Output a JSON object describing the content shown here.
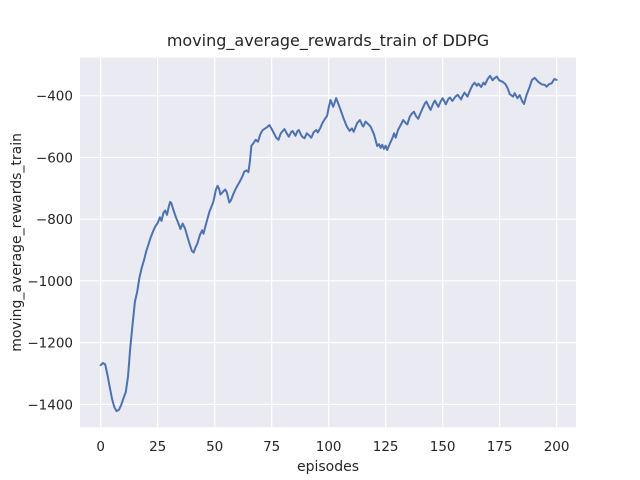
{
  "figure": {
    "title": "moving_average_rewards_train of DDPG",
    "xlabel": "episodes",
    "ylabel": "moving_average_rewards_train"
  },
  "chart_data": {
    "type": "line",
    "title": "moving_average_rewards_train of DDPG",
    "xlabel": "episodes",
    "ylabel": "moving_average_rewards_train",
    "style": "seaborn-darkgrid",
    "grid": true,
    "legend": "none",
    "background_color": "#eaeaf2",
    "gridline_color": "#ffffff",
    "line_color": "#4c72b0",
    "text_color": "#262626",
    "x_ticks": [
      0,
      25,
      50,
      75,
      100,
      125,
      150,
      175,
      200
    ],
    "y_ticks": [
      -400,
      -600,
      -800,
      -1000,
      -1200,
      -1400
    ],
    "xlim": [
      -9.07,
      208.5
    ],
    "ylim": [
      -1474,
      -276.6
    ],
    "series": [
      {
        "name": "moving_average_rewards_train",
        "points": [
          [
            0,
            -1273
          ],
          [
            1,
            -1266
          ],
          [
            2,
            -1271
          ],
          [
            3,
            -1305
          ],
          [
            4,
            -1345
          ],
          [
            5,
            -1383
          ],
          [
            6,
            -1410
          ],
          [
            7,
            -1422
          ],
          [
            8,
            -1418
          ],
          [
            9,
            -1402
          ],
          [
            10,
            -1380
          ],
          [
            11,
            -1360
          ],
          [
            12,
            -1310
          ],
          [
            13,
            -1215
          ],
          [
            14,
            -1140
          ],
          [
            15,
            -1068
          ],
          [
            16,
            -1035
          ],
          [
            17,
            -990
          ],
          [
            18,
            -958
          ],
          [
            19,
            -933
          ],
          [
            20,
            -903
          ],
          [
            21,
            -880
          ],
          [
            22,
            -858
          ],
          [
            23,
            -839
          ],
          [
            24,
            -823
          ],
          [
            25,
            -812
          ],
          [
            26,
            -794
          ],
          [
            26.7,
            -806
          ],
          [
            27.5,
            -780
          ],
          [
            28.3,
            -772
          ],
          [
            29.1,
            -786
          ],
          [
            30,
            -755
          ],
          [
            30.5,
            -744
          ],
          [
            31,
            -748
          ],
          [
            32,
            -772
          ],
          [
            33,
            -794
          ],
          [
            34,
            -812
          ],
          [
            35,
            -832
          ],
          [
            36,
            -814
          ],
          [
            37,
            -830
          ],
          [
            38,
            -856
          ],
          [
            39,
            -880
          ],
          [
            40,
            -903
          ],
          [
            40.8,
            -908
          ],
          [
            41.5,
            -893
          ],
          [
            42.5,
            -877
          ],
          [
            43.5,
            -852
          ],
          [
            44.5,
            -836
          ],
          [
            45.1,
            -847
          ],
          [
            46,
            -822
          ],
          [
            47,
            -795
          ],
          [
            47.7,
            -776
          ],
          [
            48.5,
            -762
          ],
          [
            49.5,
            -742
          ],
          [
            50.5,
            -706
          ],
          [
            51.3,
            -692
          ],
          [
            52,
            -703
          ],
          [
            52.5,
            -720
          ],
          [
            53.2,
            -715
          ],
          [
            54,
            -708
          ],
          [
            54.6,
            -704
          ],
          [
            55.3,
            -712
          ],
          [
            56.4,
            -746
          ],
          [
            57.2,
            -738
          ],
          [
            58,
            -722
          ],
          [
            59,
            -705
          ],
          [
            60,
            -691
          ],
          [
            61,
            -679
          ],
          [
            62,
            -664
          ],
          [
            63,
            -646
          ],
          [
            64,
            -642
          ],
          [
            64.8,
            -648
          ],
          [
            65.5,
            -610
          ],
          [
            66.1,
            -562
          ],
          [
            67,
            -554
          ],
          [
            68,
            -543
          ],
          [
            69,
            -549
          ],
          [
            70,
            -525
          ],
          [
            71,
            -512
          ],
          [
            72,
            -507
          ],
          [
            73,
            -502
          ],
          [
            74,
            -495
          ],
          [
            75,
            -508
          ],
          [
            76,
            -522
          ],
          [
            77,
            -536
          ],
          [
            78,
            -543
          ],
          [
            79,
            -522
          ],
          [
            80,
            -513
          ],
          [
            80.6,
            -508
          ],
          [
            81.6,
            -522
          ],
          [
            82.5,
            -533
          ],
          [
            83.5,
            -519
          ],
          [
            84.2,
            -514
          ],
          [
            85.4,
            -530
          ],
          [
            86.4,
            -514
          ],
          [
            86.9,
            -511
          ],
          [
            87.9,
            -527
          ],
          [
            88.4,
            -533
          ],
          [
            89.4,
            -538
          ],
          [
            90.4,
            -522
          ],
          [
            91.6,
            -530
          ],
          [
            92.4,
            -536
          ],
          [
            93.4,
            -519
          ],
          [
            94.6,
            -511
          ],
          [
            95.3,
            -519
          ],
          [
            96.4,
            -504
          ],
          [
            97.2,
            -489
          ],
          [
            98.3,
            -476
          ],
          [
            99.3,
            -465
          ],
          [
            100,
            -440
          ],
          [
            100.8,
            -414
          ],
          [
            102,
            -436
          ],
          [
            103.3,
            -408
          ],
          [
            104.2,
            -425
          ],
          [
            105,
            -441
          ],
          [
            106.5,
            -473
          ],
          [
            108,
            -500
          ],
          [
            109.2,
            -514
          ],
          [
            110.2,
            -506
          ],
          [
            111,
            -517
          ],
          [
            112.5,
            -489
          ],
          [
            113.7,
            -479
          ],
          [
            114.7,
            -495
          ],
          [
            115.2,
            -500
          ],
          [
            116.2,
            -484
          ],
          [
            117.2,
            -491
          ],
          [
            118.4,
            -500
          ],
          [
            119.9,
            -525
          ],
          [
            121.3,
            -563
          ],
          [
            122.1,
            -557
          ],
          [
            122.8,
            -569
          ],
          [
            123.5,
            -559
          ],
          [
            124.3,
            -572
          ],
          [
            125,
            -562
          ],
          [
            125.7,
            -576
          ],
          [
            126.9,
            -554
          ],
          [
            127.9,
            -538
          ],
          [
            128.7,
            -522
          ],
          [
            129.4,
            -536
          ],
          [
            130.4,
            -511
          ],
          [
            131.6,
            -495
          ],
          [
            132.7,
            -479
          ],
          [
            133.9,
            -489
          ],
          [
            134.5,
            -493
          ],
          [
            135.6,
            -468
          ],
          [
            136.5,
            -458
          ],
          [
            137.4,
            -452
          ],
          [
            138.3,
            -466
          ],
          [
            139.3,
            -475
          ],
          [
            140.3,
            -457
          ],
          [
            141.2,
            -441
          ],
          [
            142.2,
            -425
          ],
          [
            142.9,
            -419
          ],
          [
            144,
            -437
          ],
          [
            144.7,
            -446
          ],
          [
            145.9,
            -425
          ],
          [
            146.6,
            -416
          ],
          [
            147.6,
            -430
          ],
          [
            148.1,
            -436
          ],
          [
            149.1,
            -419
          ],
          [
            150,
            -408
          ],
          [
            151,
            -421
          ],
          [
            151.4,
            -428
          ],
          [
            152.5,
            -411
          ],
          [
            153.2,
            -406
          ],
          [
            154.3,
            -417
          ],
          [
            155.5,
            -404
          ],
          [
            156.6,
            -397
          ],
          [
            157.7,
            -408
          ],
          [
            158.1,
            -412
          ],
          [
            158.8,
            -400
          ],
          [
            159.6,
            -390
          ],
          [
            160.9,
            -403
          ],
          [
            162,
            -383
          ],
          [
            163.1,
            -366
          ],
          [
            164,
            -358
          ],
          [
            165,
            -368
          ],
          [
            165.7,
            -361
          ],
          [
            166.9,
            -372
          ],
          [
            167.9,
            -358
          ],
          [
            168.6,
            -364
          ],
          [
            169.8,
            -345
          ],
          [
            170.8,
            -336
          ],
          [
            171.9,
            -350
          ],
          [
            172.8,
            -343
          ],
          [
            173.8,
            -338
          ],
          [
            174.8,
            -350
          ],
          [
            176.3,
            -355
          ],
          [
            177.5,
            -362
          ],
          [
            178.5,
            -375
          ],
          [
            179.4,
            -395
          ],
          [
            180.9,
            -403
          ],
          [
            181.6,
            -392
          ],
          [
            182.8,
            -408
          ],
          [
            183.8,
            -398
          ],
          [
            185,
            -419
          ],
          [
            185.7,
            -427
          ],
          [
            186.8,
            -398
          ],
          [
            188.2,
            -371
          ],
          [
            189.2,
            -349
          ],
          [
            190.4,
            -342
          ],
          [
            191.9,
            -355
          ],
          [
            193.4,
            -363
          ],
          [
            194.8,
            -365
          ],
          [
            195.6,
            -371
          ],
          [
            196.6,
            -363
          ],
          [
            197.8,
            -360
          ],
          [
            199,
            -346
          ],
          [
            200,
            -349
          ]
        ]
      }
    ]
  }
}
